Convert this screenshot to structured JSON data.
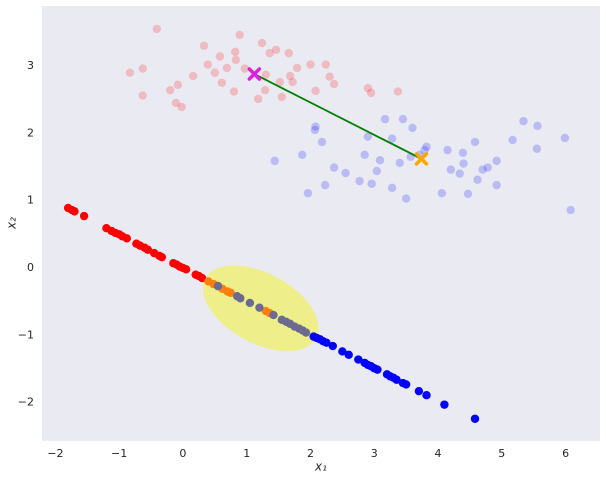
{
  "chart_data": {
    "type": "scatter",
    "xlabel": "x₁",
    "ylabel": "x₂",
    "xlim": [
      -2.21,
      6.54
    ],
    "ylim": [
      -2.57,
      3.89
    ],
    "xticks": [
      {
        "value": -2,
        "label": "−2"
      },
      {
        "value": -1,
        "label": "−1"
      },
      0,
      1,
      2,
      3,
      4,
      5,
      6
    ],
    "yticks": [
      {
        "value": -2,
        "label": "−2"
      },
      {
        "value": -1,
        "label": "−1"
      },
      0,
      1,
      2,
      3
    ],
    "background": "#eaeaf2",
    "ellipse": {
      "center": [
        1.22,
        -0.6
      ],
      "width": 1.95,
      "height": 1.05,
      "angle": -26,
      "color": "#f0f060",
      "alpha": 0.7
    },
    "series": [
      {
        "color": "#ff0000",
        "alpha": 0.2,
        "x": [
          -0.41,
          -0.83,
          -0.63,
          -0.63,
          -0.2,
          -0.08,
          -0.11,
          -0.02,
          0.16,
          0.33,
          0.39,
          0.5,
          0.58,
          0.61,
          0.69,
          0.82,
          0.83,
          0.8,
          0.89,
          0.97,
          1.24,
          1.3,
          1.18,
          1.29,
          1.36,
          1.46,
          1.52,
          1.55,
          1.66,
          1.68,
          1.79,
          1.72,
          2.0,
          2.08,
          2.24,
          2.3,
          2.37,
          2.9,
          2.95,
          3.37
        ],
        "y": [
          3.55,
          2.9,
          2.96,
          2.56,
          2.64,
          2.72,
          2.45,
          2.39,
          2.85,
          3.3,
          3.02,
          2.9,
          3.14,
          2.75,
          2.97,
          3.21,
          3.09,
          2.62,
          3.46,
          2.96,
          3.34,
          2.87,
          2.51,
          2.64,
          3.19,
          3.24,
          2.76,
          2.54,
          3.19,
          2.85,
          2.97,
          2.76,
          3.02,
          2.63,
          3.02,
          2.84,
          2.73,
          2.67,
          2.6,
          2.62
        ]
      },
      {
        "color": "#0000ff",
        "alpha": 0.2,
        "x": [
          1.44,
          1.87,
          1.96,
          2.07,
          2.08,
          2.18,
          2.23,
          2.37,
          2.55,
          2.77,
          2.85,
          2.9,
          2.96,
          3.04,
          3.09,
          3.17,
          3.28,
          3.28,
          3.4,
          3.45,
          3.5,
          3.57,
          3.6,
          3.71,
          3.79,
          3.82,
          4.06,
          4.15,
          4.2,
          4.34,
          4.39,
          4.4,
          4.47,
          4.58,
          4.62,
          4.7,
          4.78,
          4.92,
          4.92,
          5.17,
          5.34,
          5.55,
          5.56,
          5.99,
          6.08
        ],
        "y": [
          1.59,
          1.68,
          1.11,
          2.05,
          2.1,
          1.87,
          1.23,
          1.49,
          1.41,
          1.29,
          1.68,
          1.95,
          1.25,
          1.44,
          1.6,
          2.21,
          1.92,
          1.19,
          1.56,
          2.21,
          1.03,
          1.65,
          2.08,
          1.68,
          1.75,
          1.8,
          1.11,
          1.75,
          1.46,
          1.4,
          1.71,
          1.55,
          1.1,
          1.87,
          1.31,
          1.46,
          1.49,
          1.59,
          1.23,
          1.9,
          2.18,
          1.77,
          2.11,
          1.93,
          0.86
        ]
      },
      {
        "color": "#ff0000",
        "alpha": 1,
        "x": [
          -1.8,
          -1.74,
          -1.7,
          -1.55,
          -1.2,
          -1.12,
          -1.06,
          -1.0,
          -0.95,
          -0.88,
          -0.73,
          -0.67,
          -0.6,
          -0.55,
          -0.45,
          -0.37,
          -0.33,
          -0.15,
          -0.1,
          -0.05,
          0.0,
          0.05,
          0.2,
          0.25,
          0.3
        ],
        "y": [
          0.89,
          0.86,
          0.84,
          0.77,
          0.59,
          0.55,
          0.52,
          0.5,
          0.47,
          0.44,
          0.36,
          0.33,
          0.3,
          0.27,
          0.22,
          0.18,
          0.16,
          0.07,
          0.05,
          0.02,
          0.0,
          -0.02,
          -0.1,
          -0.12,
          -0.15
        ]
      },
      {
        "color": "#ff7f0e",
        "alpha": 1,
        "x": [
          0.4,
          0.48,
          0.55,
          0.62,
          0.7,
          0.75,
          1.3,
          1.36
        ],
        "y": [
          -0.2,
          -0.24,
          -0.27,
          -0.31,
          -0.35,
          -0.37,
          -0.64,
          -0.67
        ]
      },
      {
        "color": "#6b6b8f",
        "alpha": 1,
        "x": [
          0.55,
          0.85,
          0.9,
          1.05,
          1.2,
          1.42,
          1.55,
          1.62,
          1.68,
          1.75,
          1.82,
          1.88,
          1.93
        ],
        "y": [
          -0.27,
          -0.42,
          -0.45,
          -0.52,
          -0.59,
          -0.7,
          -0.77,
          -0.8,
          -0.83,
          -0.87,
          -0.9,
          -0.93,
          -0.96
        ]
      },
      {
        "color": "#0000ff",
        "alpha": 1,
        "x": [
          2.05,
          2.1,
          2.15,
          2.2,
          2.25,
          2.35,
          2.5,
          2.6,
          2.75,
          2.85,
          2.9,
          2.95,
          3.0,
          3.05,
          3.2,
          3.25,
          3.3,
          3.35,
          3.45,
          3.5,
          3.7,
          3.82,
          4.1,
          4.58
        ],
        "y": [
          -1.02,
          -1.04,
          -1.06,
          -1.09,
          -1.11,
          -1.16,
          -1.24,
          -1.29,
          -1.36,
          -1.41,
          -1.44,
          -1.46,
          -1.49,
          -1.51,
          -1.58,
          -1.61,
          -1.63,
          -1.66,
          -1.71,
          -1.73,
          -1.83,
          -1.89,
          -2.03,
          -2.24
        ]
      }
    ],
    "lines": [
      {
        "color": "#008000",
        "x": [
          1.12,
          3.74
        ],
        "y": [
          2.88,
          1.62
        ]
      }
    ],
    "markers": [
      {
        "color": "#e020e0",
        "x": [
          1.12
        ],
        "y": [
          2.88
        ]
      },
      {
        "color": "#ffa500",
        "x": [
          3.74
        ],
        "y": [
          1.62
        ]
      }
    ]
  }
}
